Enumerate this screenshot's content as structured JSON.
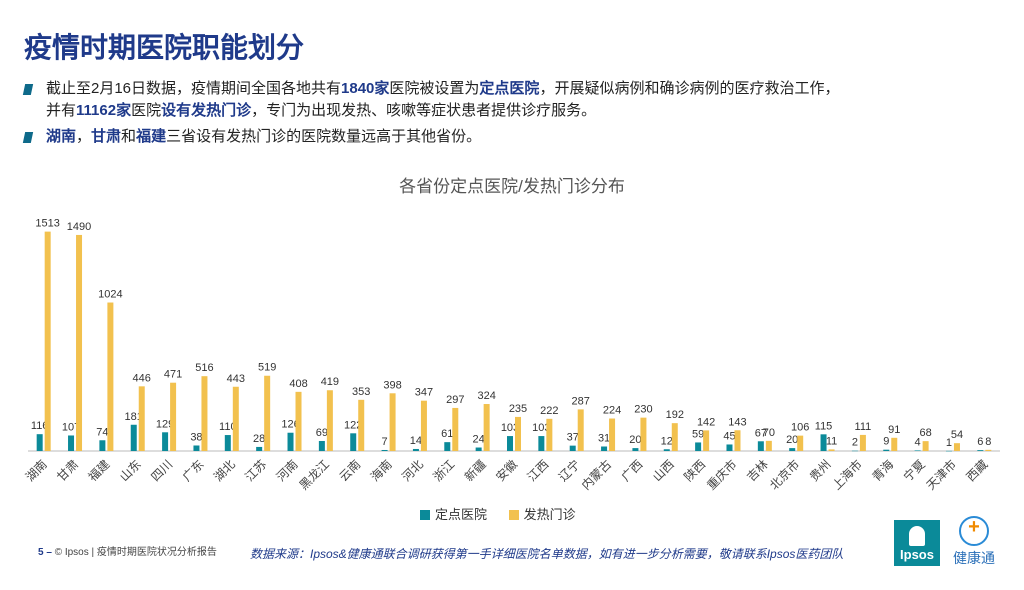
{
  "page": {
    "title": "疫情时期医院职能划分",
    "bullet1": {
      "p1": "截止至2月16日数据，疫情期间全国各地共有",
      "h1": "1840家",
      "p2": "医院被设置为",
      "h2": "定点医院",
      "p3": "，开展疑似病例和确诊病例的医疗救治工作，",
      "p4": "并有",
      "h3": "11162家",
      "p5": "医院",
      "h4": "设有发热门诊",
      "p6": "，专门为出现发热、咳嗽等症状患者提供诊疗服务。"
    },
    "bullet2": {
      "h1": "湖南",
      "p1": "，",
      "h2": "甘肃",
      "p2": "和",
      "h3": "福建",
      "p3": "三省设有发热门诊的医院数量远高于其他省份。"
    },
    "footer_page": "5 –",
    "footer_text": "© Ipsos | 疫情时期医院状况分析报告",
    "source": "数据来源：Ipsos&健康通联合调研获得第一手详细医院名单数据，如有进一步分析需要，敬请联系Ipsos医药团队",
    "logo_ipsos_text": "Ipsos",
    "logo_jk_text": "健康通"
  },
  "colors": {
    "designated": "#0b8a99",
    "fever": "#f2c14e",
    "title": "#1f3a8a"
  },
  "chart_data": {
    "type": "bar",
    "title": "各省份定点医院/发热门诊分布",
    "legend_position": "bottom",
    "categories": [
      "湖南",
      "甘肃",
      "福建",
      "山东",
      "四川",
      "广东",
      "湖北",
      "江苏",
      "河南",
      "黑龙江",
      "云南",
      "海南",
      "河北",
      "浙江",
      "新疆",
      "安徽",
      "江西",
      "辽宁",
      "内蒙古",
      "广西",
      "山西",
      "陕西",
      "重庆市",
      "吉林",
      "北京市",
      "贵州",
      "上海市",
      "青海",
      "宁夏",
      "天津市",
      "西藏"
    ],
    "series": [
      {
        "name": "定点医院",
        "values": [
          116,
          107,
          74,
          181,
          129,
          38,
          110,
          28,
          126,
          69,
          122,
          7,
          14,
          61,
          24,
          103,
          103,
          37,
          31,
          20,
          12,
          59,
          45,
          67,
          20,
          115,
          2,
          9,
          4,
          1,
          6
        ]
      },
      {
        "name": "发热门诊",
        "values": [
          1513,
          1490,
          1024,
          446,
          471,
          516,
          443,
          519,
          408,
          419,
          353,
          398,
          347,
          297,
          324,
          235,
          222,
          287,
          224,
          230,
          192,
          142,
          143,
          70,
          106,
          11,
          111,
          91,
          68,
          54,
          8
        ]
      }
    ],
    "ylim": [
      0,
      1600
    ],
    "grid": false
  }
}
